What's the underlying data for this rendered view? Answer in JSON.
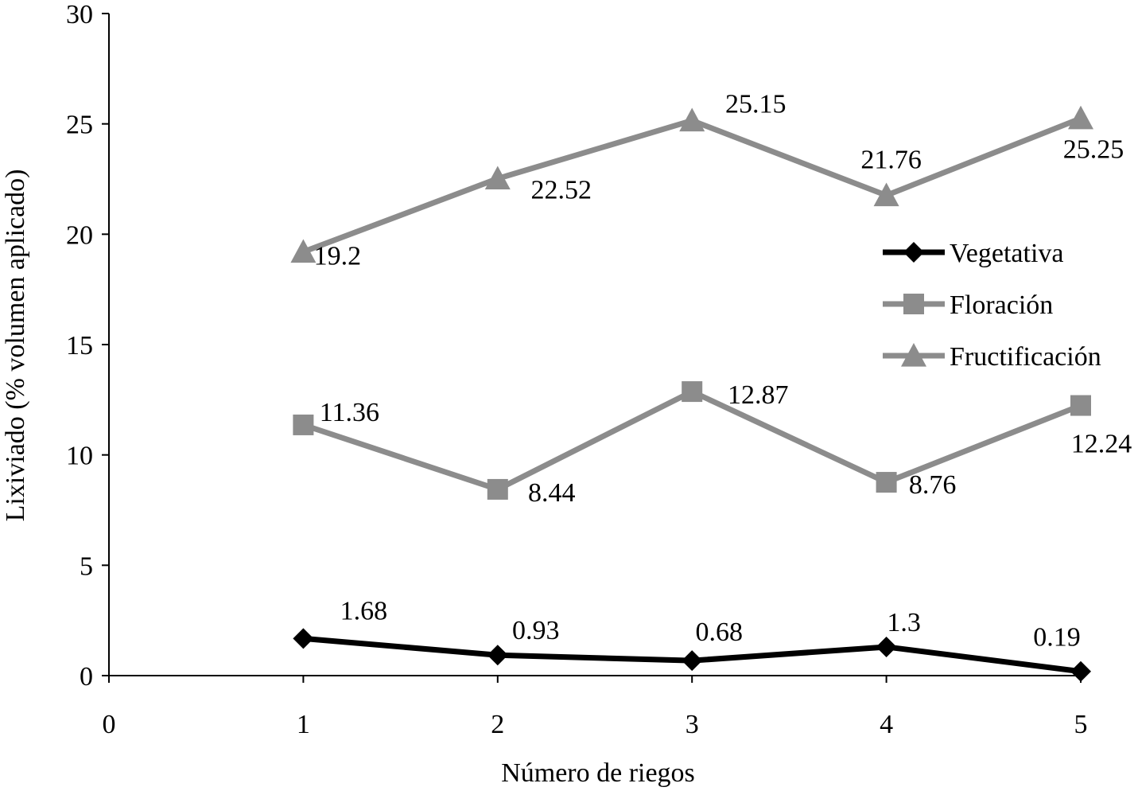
{
  "chart_data": {
    "type": "line",
    "xlabel": "Número de riegos",
    "ylabel": "Lixiviado (% volumen aplicado)",
    "xlim": [
      0,
      5
    ],
    "ylim": [
      0,
      30
    ],
    "x_ticks": [
      "0",
      "1",
      "2",
      "3",
      "4",
      "5"
    ],
    "y_ticks": [
      "0",
      "5",
      "10",
      "15",
      "20",
      "25",
      "30"
    ],
    "x": [
      1,
      2,
      3,
      4,
      5
    ],
    "grid": false,
    "legend_position": "right",
    "series": [
      {
        "name": "Vegetativa",
        "marker": "diamond",
        "color": "#000000",
        "values": [
          1.68,
          0.93,
          0.68,
          1.3,
          0.19
        ],
        "labels": [
          "1.68",
          "0.93",
          "0.68",
          "1.3",
          "0.19"
        ]
      },
      {
        "name": "Floración",
        "marker": "square",
        "color": "#8c8c8c",
        "values": [
          11.36,
          8.44,
          12.87,
          8.76,
          12.24
        ],
        "labels": [
          "11.36",
          "8.44",
          "12.87",
          "8.76",
          "12.24"
        ]
      },
      {
        "name": "Fructificación",
        "marker": "triangle",
        "color": "#8c8c8c",
        "values": [
          19.2,
          22.52,
          25.15,
          21.76,
          25.25
        ],
        "labels": [
          "19.2",
          "22.52",
          "25.15",
          "21.76",
          "25.25"
        ]
      }
    ]
  }
}
